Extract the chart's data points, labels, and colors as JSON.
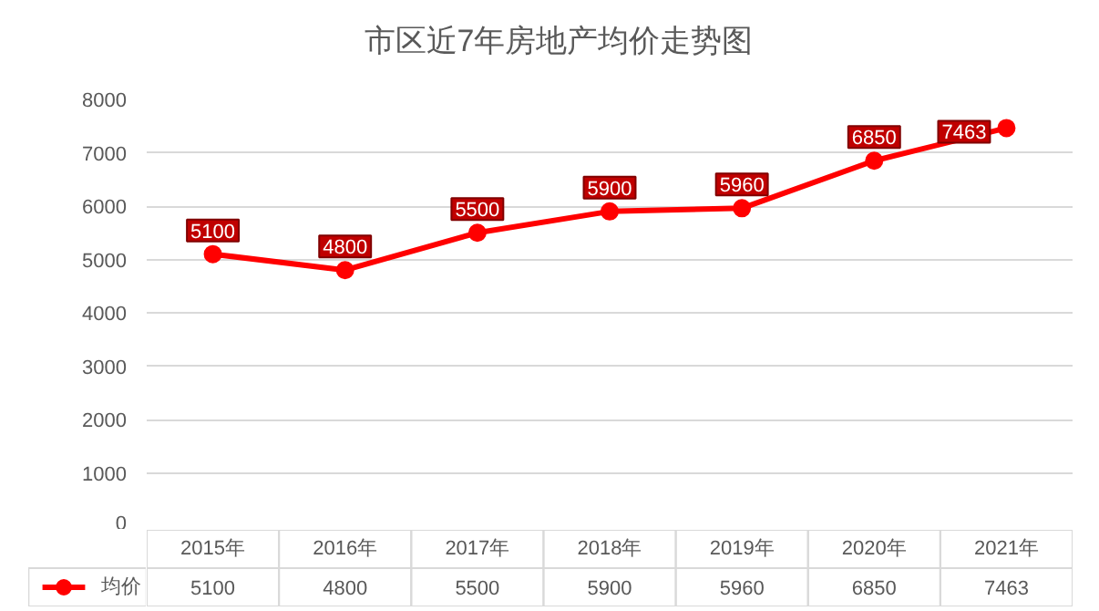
{
  "chart_data": {
    "type": "line",
    "title": "市区近7年房地产均价走势图",
    "categories": [
      "2015年",
      "2016年",
      "2017年",
      "2018年",
      "2019年",
      "2020年",
      "2021年"
    ],
    "series": [
      {
        "name": "均价",
        "color": "#ff0000",
        "values": [
          5100,
          4800,
          5500,
          5900,
          5960,
          6850,
          7463
        ],
        "value_labels": [
          "5100",
          "4800",
          "5500",
          "5900",
          "5960",
          "6850",
          "7463"
        ]
      }
    ],
    "ylim": [
      0,
      8000
    ],
    "yticks": [
      0,
      1000,
      2000,
      3000,
      4000,
      5000,
      6000,
      7000,
      8000
    ],
    "grid": "y",
    "legend": "bottom",
    "marker": "circle",
    "line_style": "solid",
    "data_labels": true
  }
}
